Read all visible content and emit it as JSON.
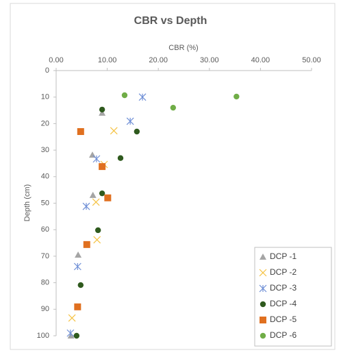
{
  "chart_data": {
    "type": "scatter",
    "title": "CBR vs Depth",
    "xlabel": "CBR (%)",
    "ylabel": "Depth (cm)",
    "xlim": [
      0,
      50
    ],
    "xticks": [
      {
        "value": 0,
        "label": "0.00"
      },
      {
        "value": 10,
        "label": "10.00"
      },
      {
        "value": 20,
        "label": "20.00"
      },
      {
        "value": 30,
        "label": "30.00"
      },
      {
        "value": 40,
        "label": "40.00"
      },
      {
        "value": 50,
        "label": "50.00"
      }
    ],
    "ylim": [
      0,
      100
    ],
    "yticks": [
      0,
      10,
      20,
      30,
      40,
      50,
      60,
      70,
      80,
      90,
      100
    ],
    "y_reversed": true,
    "x_axis_position": "top",
    "grid": false,
    "legend": "lower right",
    "series": [
      {
        "name": "DCP -1",
        "color": "#a5a5a5",
        "marker": "triangle",
        "x": [
          9.0,
          7.1,
          7.2,
          4.3,
          2.9
        ],
        "values": [
          16,
          31.8,
          47,
          69.5,
          100
        ]
      },
      {
        "name": "DCP -2",
        "color": "#f5c242",
        "marker": "cross",
        "x": [
          11.3,
          9.4,
          7.8,
          8.0,
          3.1
        ],
        "values": [
          22.7,
          35.4,
          49.6,
          63.8,
          93.3
        ]
      },
      {
        "name": "DCP -3",
        "color": "#6f8fd6",
        "marker": "asterisk",
        "x": [
          16.9,
          14.5,
          7.9,
          5.9,
          4.2,
          2.8
        ],
        "values": [
          10,
          19.1,
          33.3,
          51.2,
          73.9,
          99
        ]
      },
      {
        "name": "DCP -4",
        "color": "#2f5a1e",
        "marker": "circle",
        "x": [
          9.0,
          15.8,
          12.6,
          9.0,
          8.2,
          4.8,
          4.0
        ],
        "values": [
          14.7,
          23,
          33,
          46.3,
          60.2,
          80.9,
          100
        ]
      },
      {
        "name": "DCP -5",
        "color": "#e07020",
        "marker": "square",
        "x": [
          4.8,
          9.0,
          10.1,
          6.0,
          4.2
        ],
        "values": [
          23,
          36.2,
          48,
          65.6,
          89.1
        ]
      },
      {
        "name": "DCP -6",
        "color": "#70ad47",
        "marker": "circle",
        "x": [
          13.4,
          35.3,
          22.9
        ],
        "values": [
          9.3,
          9.8,
          14
        ]
      }
    ]
  }
}
